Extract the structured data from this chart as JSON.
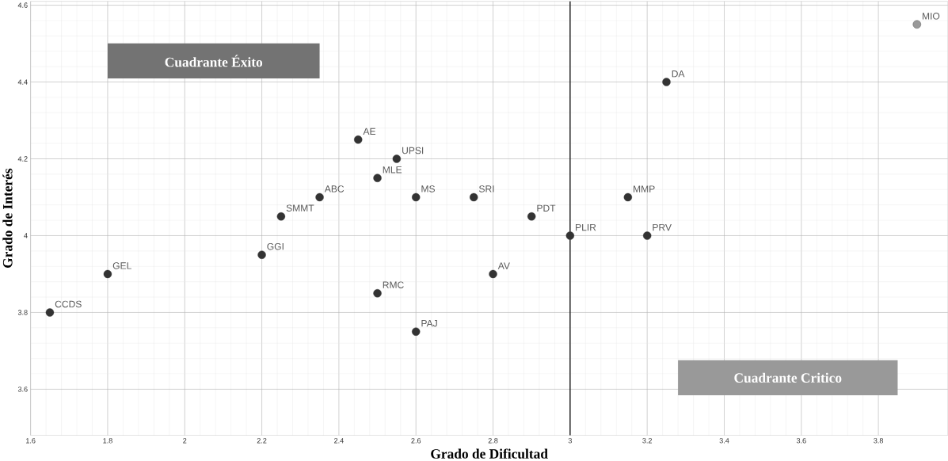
{
  "chart_data": {
    "type": "scatter",
    "xlabel": "Grado de Dificultad",
    "ylabel": "Grado de Interés",
    "x": [
      1.65,
      1.8,
      2.2,
      2.25,
      2.35,
      2.45,
      2.5,
      2.55,
      2.5,
      2.6,
      2.6,
      2.75,
      2.8,
      2.9,
      3,
      3.15,
      3.2,
      3.25,
      3.9
    ],
    "values": [
      3.8,
      3.9,
      3.95,
      4.05,
      4.1,
      4.25,
      4.15,
      4.2,
      3.85,
      4.1,
      3.75,
      4.1,
      3.9,
      4.05,
      4,
      4.1,
      4,
      4.4,
      4.55
    ],
    "colors": [
      "#333333",
      "#333333",
      "#333333",
      "#333333",
      "#333333",
      "#333333",
      "#333333",
      "#333333",
      "#333333",
      "#333333",
      "#333333",
      "#333333",
      "#333333",
      "#333333",
      "#333333",
      "#333333",
      "#333333",
      "#333333",
      "#999999"
    ],
    "xlim": [
      1.6,
      3.98
    ],
    "ylim": [
      3.48,
      4.61
    ],
    "xticks": [
      1.6,
      1.8,
      2,
      2.2,
      2.4,
      2.6,
      2.8,
      3,
      3.2,
      3.4,
      3.6,
      3.8
    ],
    "yticks": [
      3.6,
      3.8,
      4,
      4.2,
      4.4,
      4.6
    ],
    "grid": true,
    "ref_lines": [
      {
        "axis": "x",
        "value": 3,
        "color": "#000000"
      }
    ],
    "annotations": [
      "Cuadrante Éxito",
      "Cuadrante Critico",
      {
        "text": "CCDS",
        "x": 1.65,
        "y": 3.8
      },
      {
        "text": "GEL",
        "x": 1.8,
        "y": 3.9
      },
      {
        "text": "GGI",
        "x": 2.2,
        "y": 3.95
      },
      {
        "text": "SMMT",
        "x": 2.25,
        "y": 4.05
      },
      {
        "text": "ABC",
        "x": 2.35,
        "y": 4.1
      },
      {
        "text": "AE",
        "x": 2.45,
        "y": 4.25
      },
      {
        "text": "MLE",
        "x": 2.5,
        "y": 4.15
      },
      {
        "text": "UPSI",
        "x": 2.55,
        "y": 4.2
      },
      {
        "text": "RMC",
        "x": 2.5,
        "y": 3.85
      },
      {
        "text": "MS",
        "x": 2.6,
        "y": 4.1
      },
      {
        "text": "PAJ",
        "x": 2.6,
        "y": 3.75
      },
      {
        "text": "SRI",
        "x": 2.75,
        "y": 4.1
      },
      {
        "text": "AV",
        "x": 2.8,
        "y": 3.9
      },
      {
        "text": "PDT",
        "x": 2.9,
        "y": 4.05
      },
      {
        "text": "PLIR",
        "x": 3,
        "y": 4
      },
      {
        "text": "MMP",
        "x": 3.15,
        "y": 4.1
      },
      {
        "text": "PRV",
        "x": 3.2,
        "y": 4
      },
      {
        "text": "DA",
        "x": 3.25,
        "y": 4.4
      },
      {
        "text": "MIO",
        "x": 3.9,
        "y": 4.55
      }
    ]
  }
}
